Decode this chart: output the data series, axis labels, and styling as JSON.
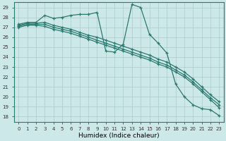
{
  "xlabel": "Humidex (Indice chaleur)",
  "xlim": [
    -0.5,
    23.5
  ],
  "ylim": [
    17.5,
    29.5
  ],
  "yticks": [
    18,
    19,
    20,
    21,
    22,
    23,
    24,
    25,
    26,
    27,
    28,
    29
  ],
  "xticks": [
    0,
    1,
    2,
    3,
    4,
    5,
    6,
    7,
    8,
    9,
    10,
    11,
    12,
    13,
    14,
    15,
    16,
    17,
    18,
    19,
    20,
    21,
    22,
    23
  ],
  "background_color": "#cde8e8",
  "grid_color": "#aacccc",
  "line_color": "#2a7a70",
  "series1": [
    27.3,
    27.5,
    27.5,
    28.2,
    27.9,
    28.0,
    28.2,
    28.3,
    28.3,
    28.5,
    24.6,
    24.5,
    25.3,
    29.3,
    29.0,
    26.3,
    25.4,
    24.4,
    21.3,
    20.0,
    19.2,
    18.8,
    18.7,
    18.1
  ],
  "series2": [
    27.2,
    27.4,
    27.4,
    27.5,
    27.2,
    27.0,
    26.8,
    26.5,
    26.2,
    26.0,
    25.7,
    25.4,
    25.1,
    24.8,
    24.5,
    24.2,
    23.8,
    23.5,
    23.0,
    22.5,
    21.8,
    21.0,
    20.2,
    19.5
  ],
  "series3": [
    27.1,
    27.3,
    27.3,
    27.3,
    27.0,
    26.8,
    26.6,
    26.3,
    26.0,
    25.7,
    25.4,
    25.1,
    24.8,
    24.5,
    24.2,
    23.9,
    23.5,
    23.2,
    22.7,
    22.2,
    21.5,
    20.7,
    19.9,
    19.2
  ],
  "series4": [
    27.0,
    27.2,
    27.2,
    27.1,
    26.8,
    26.6,
    26.4,
    26.1,
    25.8,
    25.5,
    25.2,
    24.9,
    24.6,
    24.3,
    24.0,
    23.7,
    23.3,
    23.0,
    22.5,
    22.0,
    21.3,
    20.5,
    19.7,
    18.9
  ]
}
